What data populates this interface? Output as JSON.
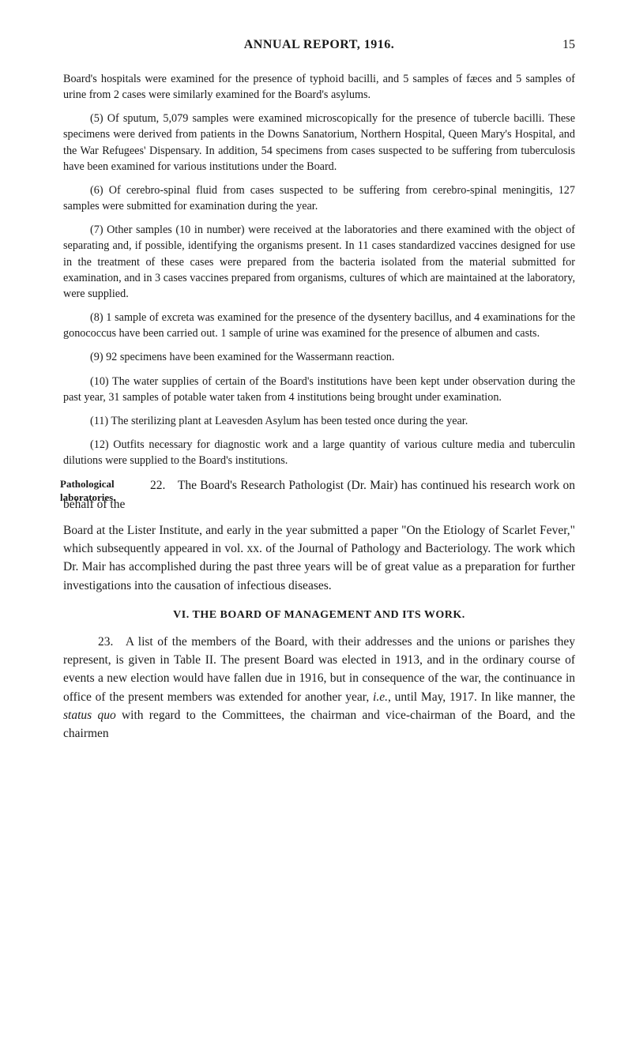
{
  "header": {
    "title": "ANNUAL REPORT, 1916.",
    "page_number": "15"
  },
  "paragraphs": {
    "p1": "Board's hospitals were examined for the presence of typhoid bacilli, and 5 samples of fæces and 5 samples of urine from 2 cases were similarly examined for the Board's asylums.",
    "p2": "(5) Of sputum, 5,079 samples were examined microscopically for the presence of tubercle bacilli. These specimens were derived from patients in the Downs Sanatorium, Northern Hospital, Queen Mary's Hospital, and the War Refugees' Dispensary. In addition, 54 specimens from cases suspected to be suffering from tuberculosis have been examined for various institutions under the Board.",
    "p3": "(6) Of cerebro-spinal fluid from cases suspected to be suffering from cerebro-spinal meningitis, 127 samples were submitted for examination during the year.",
    "p4": "(7) Other samples (10 in number) were received at the laboratories and there examined with the object of separating and, if possible, identifying the organisms present. In 11 cases standardized vaccines designed for use in the treatment of these cases were prepared from the bacteria isolated from the material submitted for examination, and in 3 cases vaccines prepared from organisms, cultures of which are maintained at the laboratory, were supplied.",
    "p5": "(8) 1 sample of excreta was examined for the presence of the dysentery bacillus, and 4 examinations for the gonococcus have been carried out. 1 sample of urine was examined for the presence of albumen and casts.",
    "p6": "(9) 92 specimens have been examined for the Wassermann reaction.",
    "p7": "(10) The water supplies of certain of the Board's institutions have been kept under observation during the past year, 31 samples of potable water taken from 4 institutions being brought under examination.",
    "p8": "(11) The sterilizing plant at Leavesden Asylum has been tested once during the year.",
    "p9": "(12) Outfits necessary for diagnostic work and a large quantity of various culture media and tuberculin dilutions were supplied to the Board's institutions."
  },
  "sidenote": {
    "label": "Pathological laboratories.",
    "first": "22. The Board's Research Pathologist (Dr. Mair) has continued his research work on behalf of the",
    "cont": "Board at the Lister Institute, and early in the year submitted a paper \"On the Etiology of Scarlet Fever,\" which subsequently appeared in vol. xx. of the Journal of Pathology and Bacteriology. The work which Dr. Mair has accomplished during the past three years will be of great value as a preparation for further investiga­tions into the causation of infectious diseases."
  },
  "section6": {
    "heading": "VI. THE BOARD OF MANAGEMENT AND ITS WORK.",
    "p_pre": "23. A list of the members of the Board, with their addresses and the unions or parishes they represent, is given in Table II. The present Board was elected in 1913, and in the ordinary course of events a new election would have fallen due in 1916, but in consequence of the war, the continuance in office of the present members was extended for another year, ",
    "ie": "i.e.",
    "p_mid": ", until May, 1917. In like manner, the ",
    "status_quo": "status quo",
    "p_post": " with regard to the Committees, the chairman and vice-chairman of the Board, and the chairmen"
  },
  "style": {
    "background_color": "#ffffff",
    "text_color": "#1a1a1a",
    "body_fontsize_pt": 11,
    "large_fontsize_pt": 12,
    "header_fontsize_pt": 12
  }
}
